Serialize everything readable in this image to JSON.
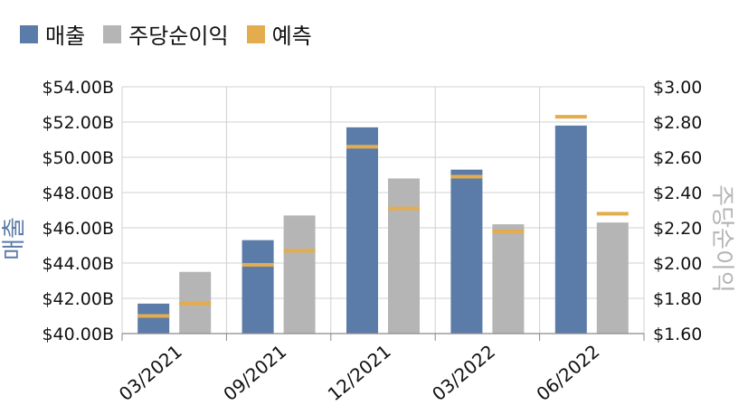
{
  "legend": {
    "items": [
      {
        "label": "매출",
        "color": "#5b7ba9"
      },
      {
        "label": "주당순이익",
        "color": "#b5b5b5"
      },
      {
        "label": "예측",
        "color": "#e3ad4f"
      }
    ]
  },
  "chart_data": {
    "type": "bar",
    "categories": [
      "03/2021",
      "09/2021",
      "12/2021",
      "03/2022",
      "06/2022"
    ],
    "left_axis": {
      "label": "매출",
      "ylim": [
        40.0,
        54.0
      ],
      "ticks": [
        40,
        42,
        44,
        46,
        48,
        50,
        52,
        54
      ],
      "tick_labels": [
        "$40.00B",
        "$42.00B",
        "$44.00B",
        "$46.00B",
        "$48.00B",
        "$50.00B",
        "$52.00B",
        "$54.00B"
      ],
      "color": "#5b7ba9"
    },
    "right_axis": {
      "label": "주당순이익",
      "ylim": [
        1.6,
        3.0
      ],
      "ticks": [
        1.6,
        1.8,
        2.0,
        2.2,
        2.4,
        2.6,
        2.8,
        3.0
      ],
      "tick_labels": [
        "$1.60",
        "$1.80",
        "$2.00",
        "$2.20",
        "$2.40",
        "$2.60",
        "$2.80",
        "$3.00"
      ],
      "color": "#b5b5b5"
    },
    "series": [
      {
        "name": "매출",
        "axis": "left",
        "color": "#5b7ba9",
        "values": [
          41.7,
          45.3,
          51.7,
          49.3,
          51.8
        ]
      },
      {
        "name": "주당순이익",
        "axis": "right",
        "color": "#b5b5b5",
        "values": [
          1.95,
          2.27,
          2.48,
          2.22,
          2.23
        ]
      }
    ],
    "forecasts": {
      "name": "예측",
      "color": "#e3ad4f",
      "revenue": [
        41.0,
        43.9,
        50.6,
        48.9,
        52.3
      ],
      "eps": [
        1.77,
        2.07,
        2.31,
        2.18,
        2.28
      ]
    },
    "grid": "horizontal-on-vertical-separators"
  }
}
